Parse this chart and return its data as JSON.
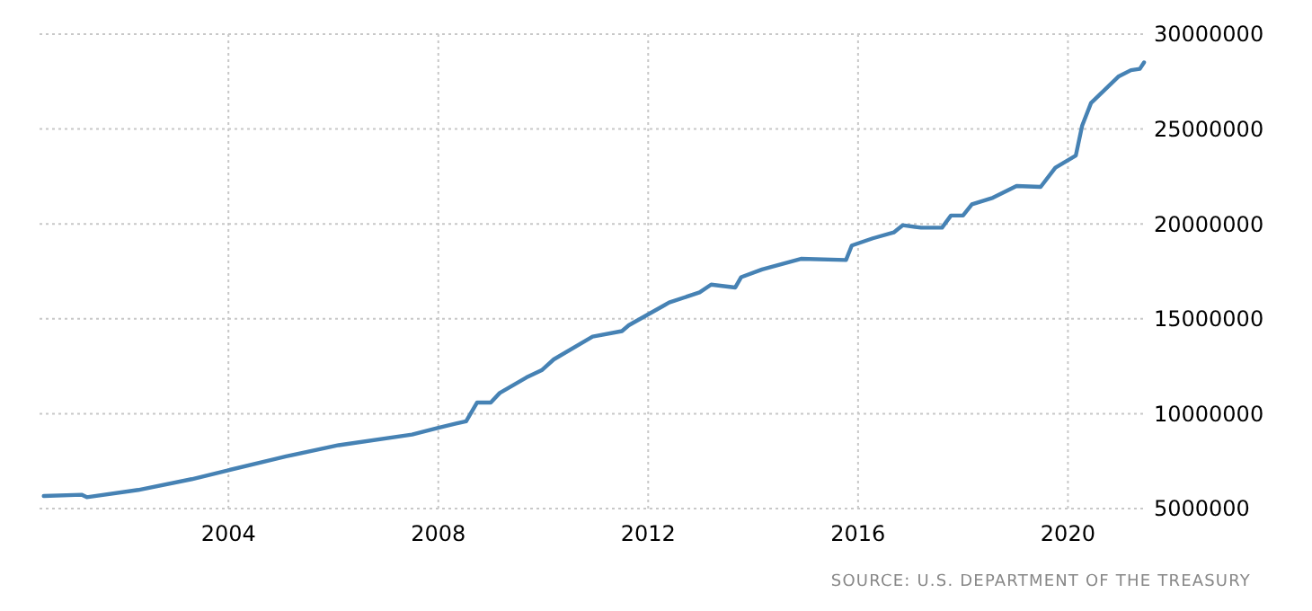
{
  "chart_data": {
    "type": "line",
    "grid": true,
    "marker": "none",
    "line_style": "solid",
    "xlim": [
      2000.4,
      2021.5
    ],
    "ylim": [
      5000000,
      30000000
    ],
    "xticks": [
      2004,
      2008,
      2012,
      2016,
      2020
    ],
    "yticks": [
      5000000,
      10000000,
      15000000,
      20000000,
      25000000,
      30000000
    ],
    "x": [
      2000.48,
      2001.2,
      2001.3,
      2002.28,
      2003.3,
      2004.0,
      2005.1,
      2006.1,
      2007.5,
      2008.0,
      2008.53,
      2008.74,
      2009.0,
      2009.17,
      2009.68,
      2009.97,
      2010.2,
      2010.94,
      2011.5,
      2011.63,
      2012.3,
      2012.4,
      2012.98,
      2013.2,
      2013.66,
      2013.77,
      2014.17,
      2014.91,
      2015.77,
      2015.88,
      2016.28,
      2016.68,
      2016.85,
      2017.2,
      2017.6,
      2017.77,
      2018.0,
      2018.17,
      2018.57,
      2019.02,
      2019.48,
      2019.76,
      2020.15,
      2020.27,
      2020.44,
      2020.96,
      2021.2,
      2021.37,
      2021.45
    ],
    "series": [
      {
        "color": "#4682b4",
        "values": [
          5660000,
          5730000,
          5600000,
          5980000,
          6550000,
          7020000,
          7750000,
          8340000,
          8900000,
          9260000,
          9600000,
          10590000,
          10590000,
          11090000,
          11910000,
          12290000,
          12860000,
          14060000,
          14350000,
          14660000,
          15700000,
          15860000,
          16390000,
          16800000,
          16650000,
          17190000,
          17600000,
          18160000,
          18100000,
          18860000,
          19240000,
          19550000,
          19930000,
          19800000,
          19800000,
          20440000,
          20440000,
          21030000,
          21380000,
          22000000,
          21950000,
          22960000,
          23600000,
          25170000,
          26370000,
          27760000,
          28100000,
          28170000,
          28510000
        ]
      }
    ],
    "annotations": [
      "SOURCE: U.S. DEPARTMENT OF THE TREASURY"
    ]
  }
}
